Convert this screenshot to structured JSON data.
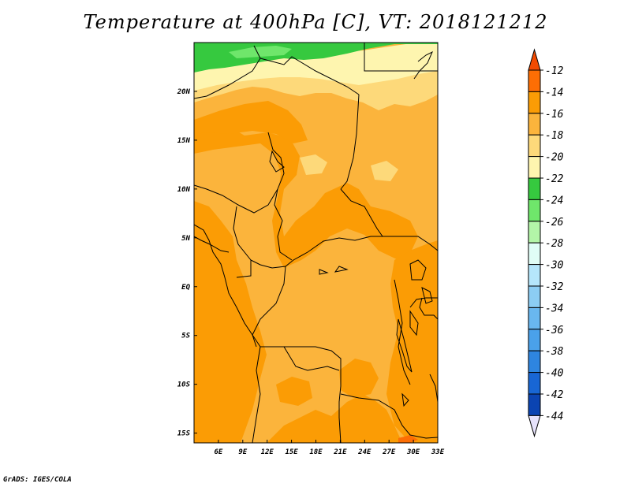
{
  "title": "Temperature at 400hPa [C], VT: 2018121212",
  "credit": "GrADS: IGES/COLA",
  "map": {
    "lon_range": [
      3,
      33
    ],
    "lat_range": [
      -16,
      25
    ],
    "lon_ticks": [
      {
        "value": 6,
        "label": "6E"
      },
      {
        "value": 9,
        "label": "9E"
      },
      {
        "value": 12,
        "label": "12E"
      },
      {
        "value": 15,
        "label": "15E"
      },
      {
        "value": 18,
        "label": "18E"
      },
      {
        "value": 21,
        "label": "21E"
      },
      {
        "value": 24,
        "label": "24E"
      },
      {
        "value": 27,
        "label": "27E"
      },
      {
        "value": 30,
        "label": "30E"
      },
      {
        "value": 33,
        "label": "33E"
      }
    ],
    "lat_ticks": [
      {
        "value": 20,
        "label": "20N"
      },
      {
        "value": 15,
        "label": "15N"
      },
      {
        "value": 10,
        "label": "10N"
      },
      {
        "value": 5,
        "label": "5N"
      },
      {
        "value": 0,
        "label": "EQ"
      },
      {
        "value": -5,
        "label": "5S"
      },
      {
        "value": -10,
        "label": "10S"
      },
      {
        "value": -15,
        "label": "15S"
      }
    ]
  },
  "colorbar": {
    "levels": [
      "-12",
      "-14",
      "-16",
      "-18",
      "-20",
      "-22",
      "-24",
      "-26",
      "-28",
      "-30",
      "-32",
      "-34",
      "-36",
      "-38",
      "-40",
      "-42",
      "-44"
    ],
    "colors": [
      "#fd6e04",
      "#fb9c05",
      "#fbb43c",
      "#fdd97a",
      "#fef5af",
      "#36c93f",
      "#6fe66b",
      "#b3f5a8",
      "#e0fdf6",
      "#b5e6fb",
      "#8ccdf3",
      "#69b7ef",
      "#4aa1ea",
      "#2e85e0",
      "#1866d4",
      "#0b44b2"
    ],
    "top_color": "#f24a00",
    "bottom_color": "#0d2380",
    "bottom_arrow_color": "#e6e2fb"
  },
  "field_colors": {
    "c_lt14": "#fb9c05",
    "c_14_16": "#fbb43c",
    "c_16_18": "#fdd97a",
    "c_18_20": "#fef5af",
    "c_20_22": "#fef5af",
    "c_22_24": "#36c93f",
    "c_24_26": "#6fe66b",
    "c_26_28": "#b3f5a8",
    "c_hot": "#fd6e04"
  }
}
